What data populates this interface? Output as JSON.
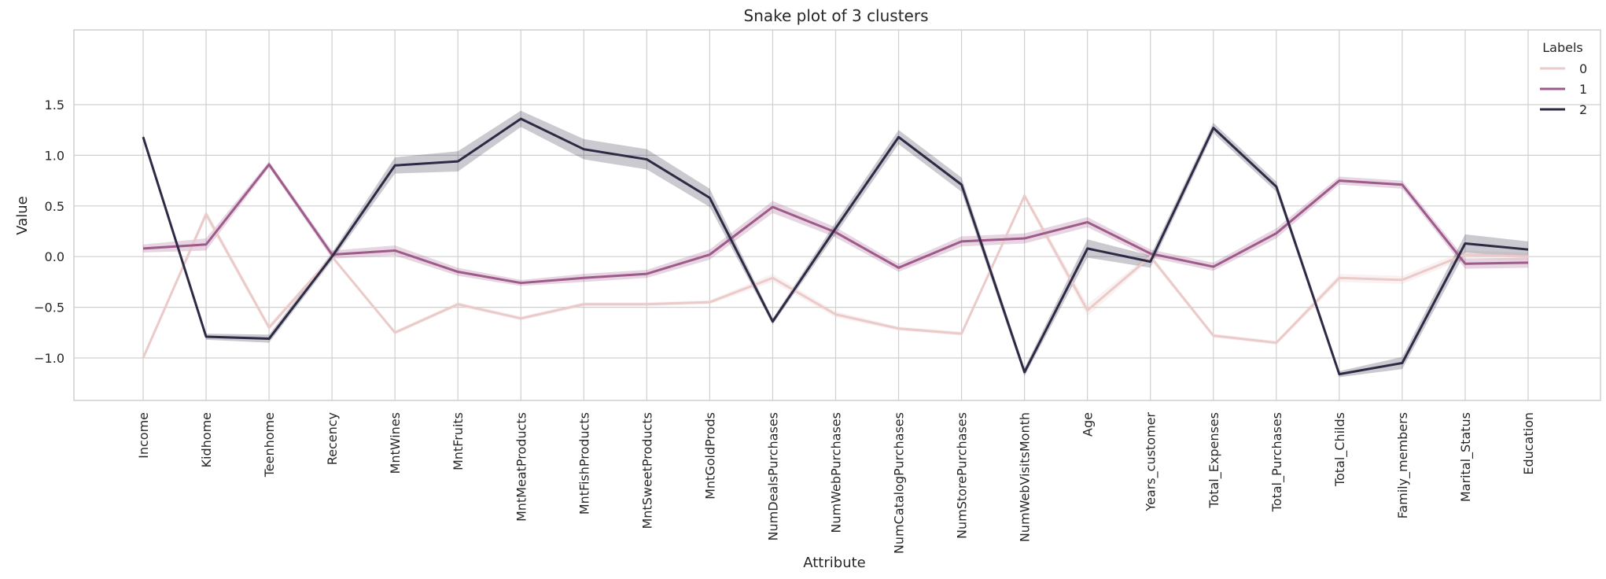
{
  "chart_data": {
    "type": "line",
    "title": "Snake plot of 3 clusters",
    "xlabel": "Attribute",
    "ylabel": "Value",
    "ylim": [
      -1.33,
      1.6
    ],
    "yticks": [
      1.5,
      1.0,
      0.5,
      0.0,
      -0.5,
      -1.0
    ],
    "ytick_labels": [
      "1.5",
      "1.0",
      "0.5",
      "0.0",
      "−0.5",
      "−1.0"
    ],
    "grid": true,
    "legend": {
      "title": "Labels",
      "placement": "top-right"
    },
    "categories": [
      "Income",
      "Kidhome",
      "Teenhome",
      "Recency",
      "MntWines",
      "MntFruits",
      "MntMeatProducts",
      "MntFishProducts",
      "MntSweetProducts",
      "MntGoldProds",
      "NumDealsPurchases",
      "NumWebPurchases",
      "NumCatalogPurchases",
      "NumStorePurchases",
      "NumWebVisitsMonth",
      "Age",
      "Years_customer",
      "Total_Expenses",
      "Total_Purchases",
      "Total_Childs",
      "Family_members",
      "Marital_Status",
      "Education"
    ],
    "series": [
      {
        "name": "0",
        "color": "#ebcaca",
        "band_color": "#ebcaca",
        "values": [
          -1.0,
          0.42,
          -0.7,
          0.0,
          -0.75,
          -0.47,
          -0.61,
          -0.47,
          -0.47,
          -0.45,
          -0.21,
          -0.57,
          -0.71,
          -0.76,
          0.6,
          -0.53,
          0.0,
          -0.78,
          -0.85,
          -0.21,
          -0.23,
          0.02,
          0.0
        ],
        "ci": [
          0.02,
          0.04,
          0.03,
          0.02,
          0.02,
          0.02,
          0.02,
          0.02,
          0.02,
          0.02,
          0.04,
          0.03,
          0.02,
          0.02,
          0.03,
          0.06,
          0.03,
          0.02,
          0.02,
          0.04,
          0.04,
          0.04,
          0.04
        ]
      },
      {
        "name": "1",
        "color": "#9e5a8a",
        "band_color": "#9e5a8a",
        "values": [
          0.08,
          0.12,
          0.91,
          0.02,
          0.06,
          -0.15,
          -0.26,
          -0.21,
          -0.17,
          0.02,
          0.49,
          0.24,
          -0.11,
          0.15,
          0.18,
          0.34,
          0.03,
          -0.1,
          0.23,
          0.75,
          0.71,
          -0.07,
          -0.06
        ],
        "ci": [
          0.04,
          0.06,
          0.03,
          0.04,
          0.05,
          0.04,
          0.03,
          0.04,
          0.04,
          0.05,
          0.06,
          0.05,
          0.04,
          0.05,
          0.05,
          0.05,
          0.04,
          0.04,
          0.05,
          0.04,
          0.04,
          0.05,
          0.05
        ]
      },
      {
        "name": "2",
        "color": "#2e2a45",
        "band_color": "#2e2a45",
        "values": [
          1.18,
          -0.79,
          -0.81,
          0.0,
          0.9,
          0.94,
          1.36,
          1.06,
          0.96,
          0.58,
          -0.64,
          0.28,
          1.18,
          0.71,
          -1.14,
          0.08,
          -0.05,
          1.27,
          0.69,
          -1.16,
          -1.05,
          0.13,
          0.07
        ],
        "ci": [
          0.03,
          0.03,
          0.04,
          0.04,
          0.08,
          0.1,
          0.08,
          0.1,
          0.1,
          0.09,
          0.03,
          0.06,
          0.07,
          0.07,
          0.04,
          0.09,
          0.06,
          0.05,
          0.05,
          0.03,
          0.06,
          0.09,
          0.08
        ]
      }
    ]
  }
}
